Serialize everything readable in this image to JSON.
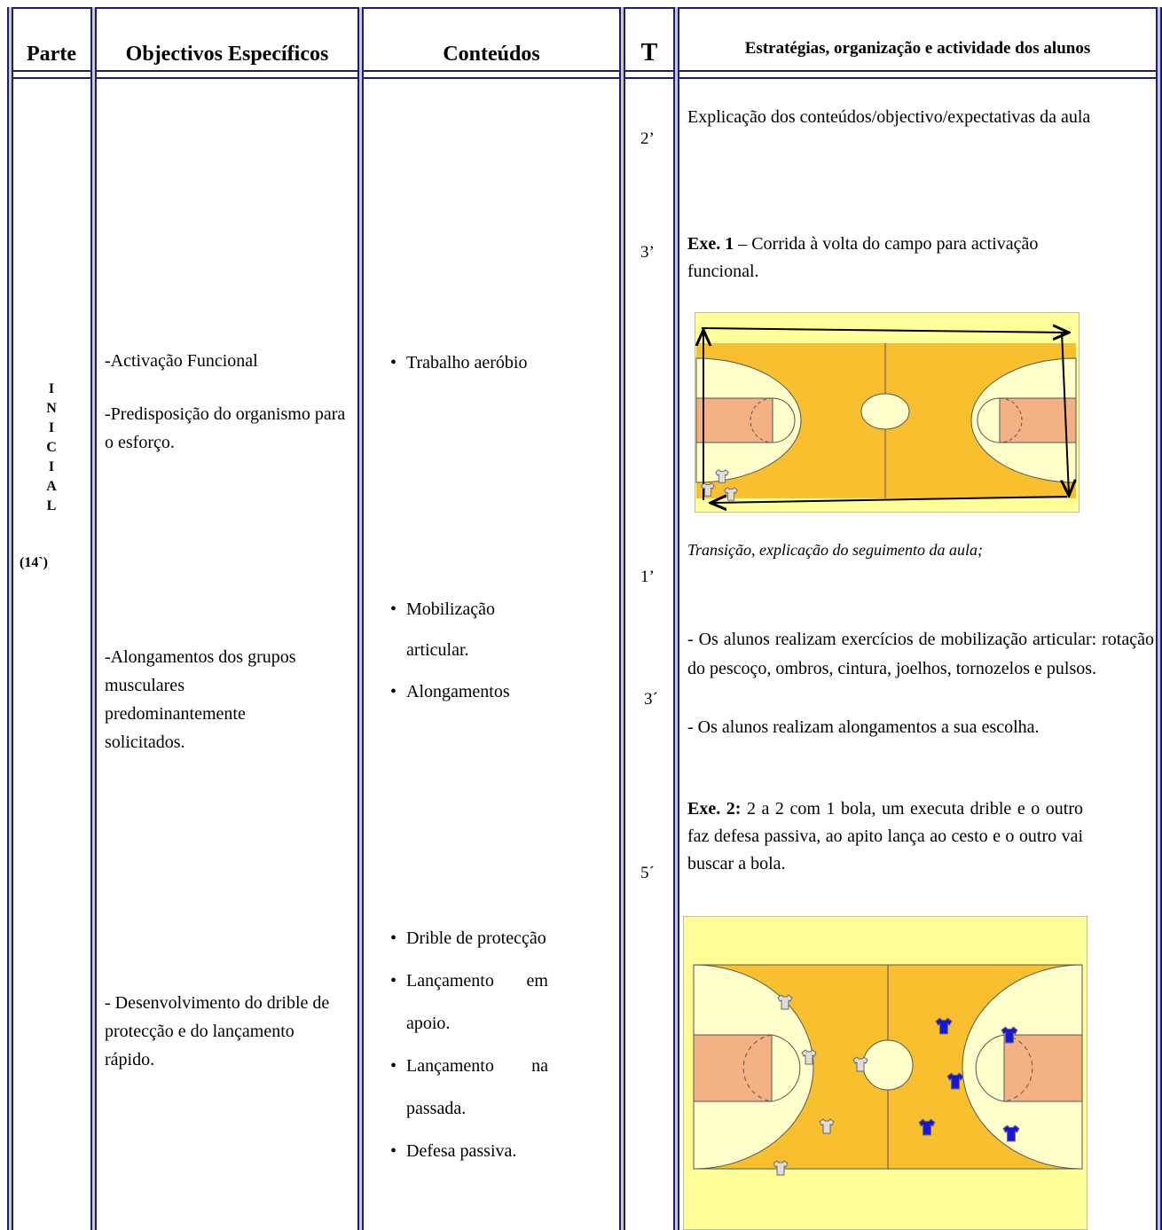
{
  "table": {
    "headers": [
      "Parte",
      "Objectivos Específicos",
      "Conteúdos",
      "T",
      "Estratégias, organização e actividade dos alunos"
    ],
    "parte": {
      "letters": [
        "I",
        "N",
        "I",
        "C",
        "I",
        "A",
        "L"
      ],
      "duration": "(14`)"
    },
    "objectives": [
      "-Activação Funcional",
      "-Predisposição do organismo para o esforço.",
      "-Alongamentos dos grupos musculares predominantemente solicitados.",
      "- Desenvolvimento do drible de protecção e do lançamento rápido."
    ],
    "contents": [
      "Trabalho aeróbio",
      "Mobilização articular.",
      "Alongamentos",
      "Drible de protecção",
      "Lançamento em apoio.",
      "Lançamento na passada.",
      "Defesa passiva."
    ],
    "times": [
      "2’",
      "3’",
      "1’",
      "3´",
      "5´"
    ],
    "strategies": {
      "intro": "Explicação dos conteúdos/objectivo/expectativas da aula",
      "exercise1": {
        "label": "Exe. 1",
        "text": "– Corrida à volta do campo para activação funcional."
      },
      "transition": "Transição, explicação do seguimento da aula;",
      "mobilization": "- Os alunos realizam exercícios de mobilização articular: rotação do pescoço, ombros, cintura, joelhos, tornozelos e pulsos.",
      "stretching": "- Os alunos realizam alongamentos a sua escolha.",
      "exercise2": {
        "label": "Exe. 2:",
        "text": "2 a 2 com 1 bola, um executa drible e o outro faz defesa passiva, ao apito lança ao cesto e o outro vai buscar a bola."
      }
    }
  }
}
